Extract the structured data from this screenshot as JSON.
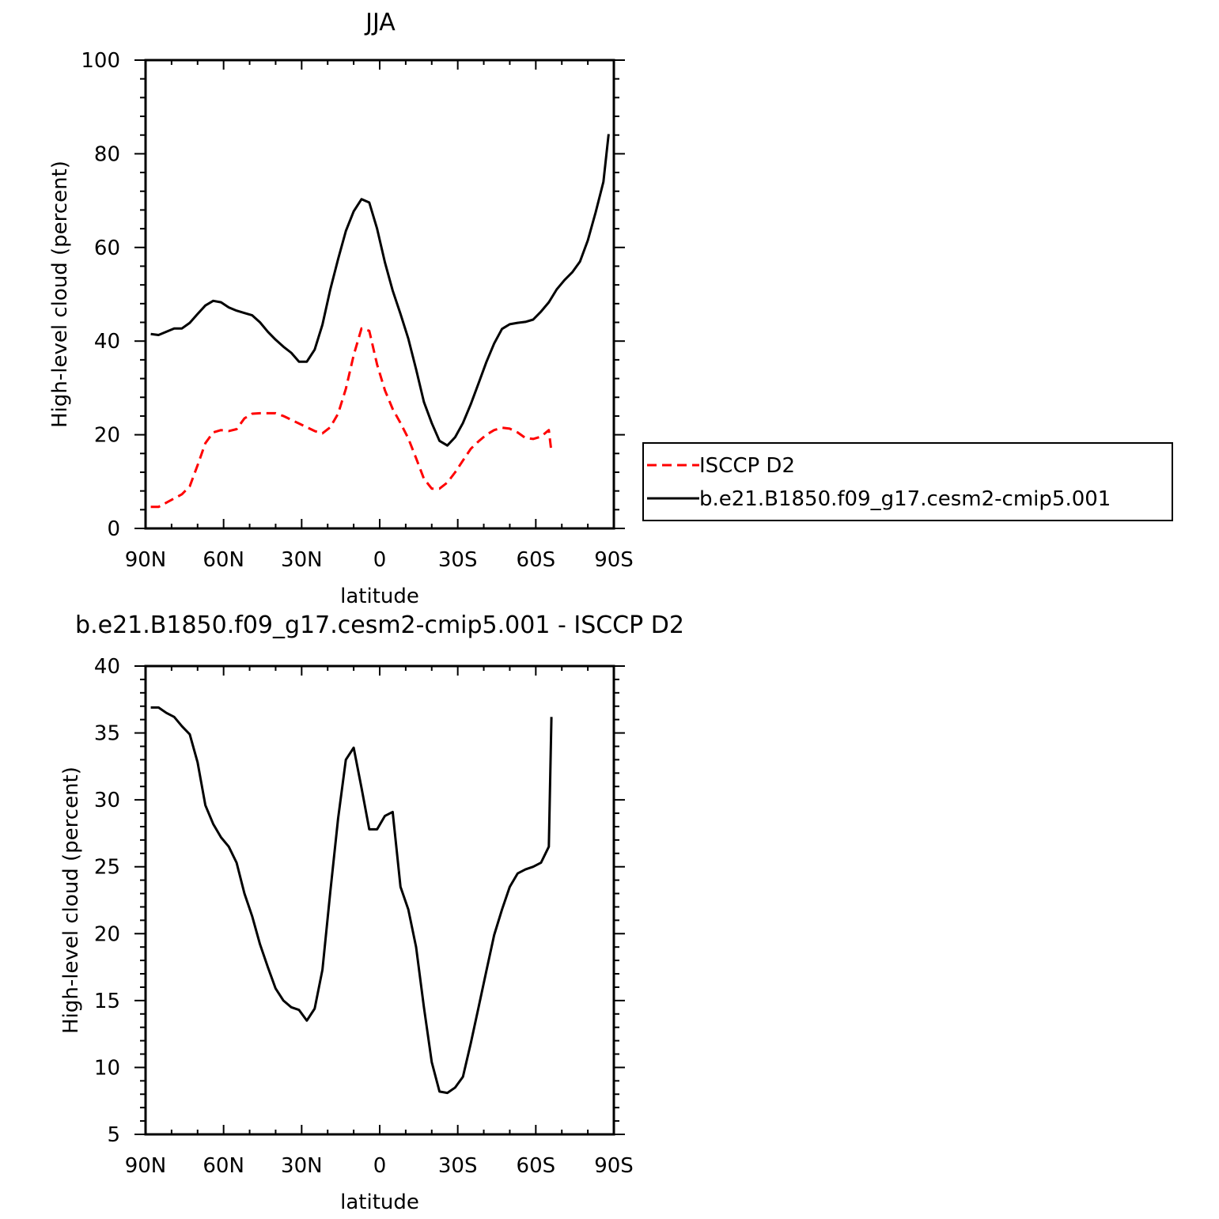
{
  "chart_data": [
    {
      "type": "line",
      "title": "JJA",
      "xlabel": "latitude",
      "ylabel": "High-level cloud (percent)",
      "xlim": [
        -90,
        90
      ],
      "ylim": [
        0,
        100
      ],
      "x_ticks": [
        {
          "value": -90,
          "label": "90N"
        },
        {
          "value": -60,
          "label": "60N"
        },
        {
          "value": -30,
          "label": "30N"
        },
        {
          "value": 0,
          "label": "0"
        },
        {
          "value": 30,
          "label": "30S"
        },
        {
          "value": 60,
          "label": "60S"
        },
        {
          "value": 90,
          "label": "90S"
        }
      ],
      "y_ticks": [
        {
          "value": 0,
          "label": "0"
        },
        {
          "value": 20,
          "label": "20"
        },
        {
          "value": 40,
          "label": "40"
        },
        {
          "value": 60,
          "label": "60"
        },
        {
          "value": 80,
          "label": "80"
        },
        {
          "value": 100,
          "label": "100"
        }
      ],
      "grid": false,
      "legend_position": "right",
      "series": [
        {
          "name": "ISCCP D2",
          "color": "#ff0000",
          "dash": "dashed",
          "x": [
            -88,
            -85,
            -82,
            -79,
            -76,
            -73,
            -70,
            -67,
            -64,
            -61,
            -58,
            -55,
            -52,
            -49,
            -46,
            -43,
            -40,
            -37,
            -34,
            -31,
            -28,
            -25,
            -22,
            -19,
            -16,
            -13,
            -10,
            -7,
            -4,
            -1,
            2,
            5,
            8,
            11,
            14,
            17,
            20,
            23,
            26,
            29,
            32,
            35,
            38,
            41,
            44,
            47,
            50,
            53,
            56,
            59,
            62,
            65
          ],
          "y": [
            4.6,
            4.6,
            5.5,
            6.4,
            7.3,
            9,
            13.5,
            18.2,
            20.5,
            21,
            20.8,
            21.2,
            23.5,
            24.5,
            24.6,
            24.6,
            24.6,
            24,
            23.2,
            22.4,
            21.6,
            20.8,
            20.3,
            21.6,
            24.5,
            29.8,
            37,
            42.7,
            42.2,
            35,
            29.5,
            25.5,
            22.5,
            19.2,
            15,
            10.6,
            8.5,
            8.5,
            9.8,
            12,
            14.5,
            17,
            18.6,
            20,
            21,
            21.5,
            21.3,
            20.5,
            19.3,
            19.1,
            19.6,
            21
          ],
          "end": {
            "x": 66,
            "y": 16.3
          }
        },
        {
          "name": "b.e21.B1850.f09_g17.cesm2-cmip5.001",
          "color": "#000000",
          "dash": "solid",
          "x": [
            -88,
            -85,
            -82,
            -79,
            -76,
            -73,
            -70,
            -67,
            -64,
            -61,
            -58,
            -55,
            -52,
            -49,
            -46,
            -43,
            -40,
            -37,
            -34,
            -31,
            -28,
            -25,
            -22,
            -19,
            -16,
            -13,
            -10,
            -7,
            -4,
            -1,
            2,
            5,
            8,
            11,
            14,
            17,
            20,
            23,
            26,
            29,
            32,
            35,
            38,
            41,
            44,
            47,
            50,
            53,
            56,
            59,
            62,
            65,
            68,
            71,
            74,
            77,
            80,
            83,
            86,
            88
          ],
          "y": [
            41.5,
            41.3,
            42,
            42.7,
            42.7,
            43.9,
            45.8,
            47.6,
            48.6,
            48.3,
            47.2,
            46.5,
            46,
            45.5,
            44,
            42,
            40.3,
            38.8,
            37.5,
            35.6,
            35.6,
            38.2,
            43.5,
            51,
            57.5,
            63.5,
            67.7,
            70.3,
            69.6,
            64,
            56.8,
            50.8,
            45.8,
            40.5,
            34,
            27,
            22.5,
            18.7,
            17.7,
            19.5,
            22.5,
            26.5,
            31,
            35.5,
            39.5,
            42.6,
            43.6,
            43.9,
            44.1,
            44.6,
            46.3,
            48.3,
            51,
            53,
            54.7,
            57,
            61.5,
            67.5,
            74,
            84.2
          ]
        }
      ]
    },
    {
      "type": "line",
      "title": "b.e21.B1850.f09_g17.cesm2-cmip5.001 - ISCCP D2",
      "xlabel": "latitude",
      "ylabel": "High-level cloud (percent)",
      "xlim": [
        -90,
        90
      ],
      "ylim": [
        5,
        40
      ],
      "x_ticks": [
        {
          "value": -90,
          "label": "90N"
        },
        {
          "value": -60,
          "label": "60N"
        },
        {
          "value": -30,
          "label": "30N"
        },
        {
          "value": 0,
          "label": "0"
        },
        {
          "value": 30,
          "label": "30S"
        },
        {
          "value": 60,
          "label": "60S"
        },
        {
          "value": 90,
          "label": "90S"
        }
      ],
      "y_ticks": [
        {
          "value": 5,
          "label": "5"
        },
        {
          "value": 10,
          "label": "10"
        },
        {
          "value": 15,
          "label": "15"
        },
        {
          "value": 20,
          "label": "20"
        },
        {
          "value": 25,
          "label": "25"
        },
        {
          "value": 30,
          "label": "30"
        },
        {
          "value": 35,
          "label": "35"
        },
        {
          "value": 40,
          "label": "40"
        }
      ],
      "grid": false,
      "series": [
        {
          "color": "#000000",
          "dash": "solid",
          "x": [
            -88,
            -85,
            -82,
            -79,
            -76,
            -73,
            -70,
            -67,
            -64,
            -61,
            -58,
            -55,
            -52,
            -49,
            -46,
            -43,
            -40,
            -37,
            -34,
            -31,
            -28,
            -25,
            -22,
            -19,
            -16,
            -13,
            -10,
            -7,
            -4,
            -1,
            2,
            5,
            8,
            11,
            14,
            17,
            20,
            23,
            26,
            29,
            32,
            35,
            38,
            41,
            44,
            47,
            50,
            53,
            56,
            59,
            62,
            65,
            66
          ],
          "y": [
            36.9,
            36.9,
            36.5,
            36.2,
            35.5,
            34.9,
            32.8,
            29.6,
            28.2,
            27.2,
            26.5,
            25.3,
            23,
            21.3,
            19.2,
            17.5,
            15.9,
            15,
            14.5,
            14.3,
            13.5,
            14.4,
            17.3,
            23.1,
            28.6,
            33,
            33.9,
            30.9,
            27.8,
            27.8,
            28.8,
            29.1,
            23.5,
            21.8,
            19,
            14.5,
            10.4,
            8.2,
            8.1,
            8.5,
            9.3,
            11.8,
            14.5,
            17.2,
            19.9,
            21.8,
            23.5,
            24.5,
            24.8,
            25,
            25.3,
            26.5,
            36.2
          ]
        }
      ]
    }
  ]
}
